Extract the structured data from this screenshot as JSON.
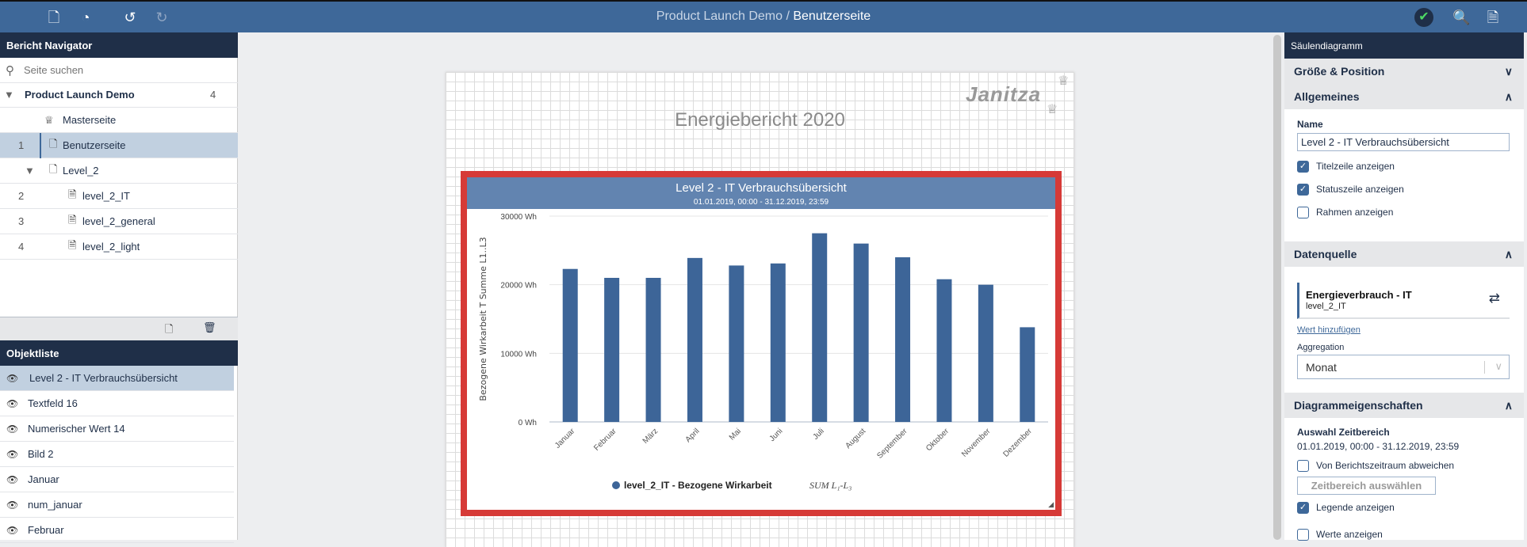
{
  "topbar": {
    "breadcrumb_project": "Product Launch Demo",
    "breadcrumb_sep": " / ",
    "breadcrumb_page": "Benutzerseite",
    "icons": [
      "file-plus-icon",
      "gauge-icon",
      "undo-icon",
      "redo-icon",
      "status-ok-icon",
      "preview-icon",
      "export-icon"
    ],
    "status_color": "#4cd964"
  },
  "navigator": {
    "title": "Bericht Navigator",
    "search_placeholder": "Seite suchen",
    "project": {
      "label": "Product Launch Demo",
      "count": "4"
    },
    "items": [
      {
        "num": "",
        "label": "Masterseite",
        "icon": "crown-icon"
      },
      {
        "num": "1",
        "label": "Benutzerseite",
        "icon": "page-icon",
        "selected": true
      },
      {
        "num": "",
        "label": "Level_2",
        "icon": "page-plus-icon"
      },
      {
        "num": "2",
        "label": "level_2_IT",
        "icon": "document-icon"
      },
      {
        "num": "3",
        "label": "level_2_general",
        "icon": "document-icon"
      },
      {
        "num": "4",
        "label": "level_2_light",
        "icon": "document-icon"
      }
    ]
  },
  "objects": {
    "title": "Objektliste",
    "items": [
      "Level 2 - IT Verbrauchsübersicht",
      "Textfeld 16",
      "Numerischer Wert 14",
      "Bild 2",
      "Januar",
      "num_januar",
      "Februar"
    ]
  },
  "page": {
    "title": "Energiebericht 2020",
    "logo": "Janitza"
  },
  "chart_data": {
    "type": "bar",
    "title": "Level 2 - IT Verbrauchsübersicht",
    "subtitle": "01.01.2019, 00:00 - 31.12.2019, 23:59",
    "ylabel": "Bezogene Wirkarbeit T Summe L1..L3",
    "xlabel": "",
    "categories": [
      "Januar",
      "Februar",
      "März",
      "April",
      "Mai",
      "Juni",
      "Juli",
      "August",
      "September",
      "Oktober",
      "November",
      "Dezember"
    ],
    "series": [
      {
        "name": "level_2_IT - Bezogene Wirkarbeit",
        "name_suffix": "SUM L₁-L₃",
        "values": [
          22300,
          21000,
          21000,
          23900,
          22800,
          23100,
          27500,
          26000,
          24000,
          20800,
          20000,
          13800
        ],
        "color": "#3d6598"
      }
    ],
    "ylim": [
      0,
      30000
    ],
    "yticks": [
      "0 Wh",
      "10000 Wh",
      "20000 Wh",
      "30000 Wh"
    ],
    "ytick_values": [
      0,
      10000,
      20000,
      30000
    ],
    "grid": true,
    "legend": "bottom",
    "frame_color": "#d63a37"
  },
  "props": {
    "title": "Säulendiagramm",
    "sections": {
      "size": "Größe & Position",
      "general": "Allgemeines",
      "source": "Datenquelle",
      "diagram": "Diagrammeigenschaften"
    },
    "name_label": "Name",
    "name_value": "Level 2 - IT Verbrauchsübersicht",
    "checks": {
      "title_row": {
        "label": "Titelzeile anzeigen",
        "checked": true
      },
      "status_row": {
        "label": "Statuszeile anzeigen",
        "checked": true
      },
      "frame": {
        "label": "Rahmen anzeigen",
        "checked": false
      },
      "deviate": {
        "label": "Von Berichtszeitraum abweichen",
        "checked": false
      },
      "legend": {
        "label": "Legende anzeigen",
        "checked": true
      },
      "values": {
        "label": "Werte anzeigen",
        "checked": false
      }
    },
    "source_title": "Energieverbrauch - IT",
    "source_sub": "level_2_IT",
    "add_value": "Wert hinzufügen",
    "aggregation_label": "Aggregation",
    "aggregation_value": "Monat",
    "range_label": "Auswahl Zeitbereich",
    "range_value": "01.01.2019, 00:00 - 31.12.2019, 23:59",
    "range_button": "Zeitbereich auswählen"
  }
}
